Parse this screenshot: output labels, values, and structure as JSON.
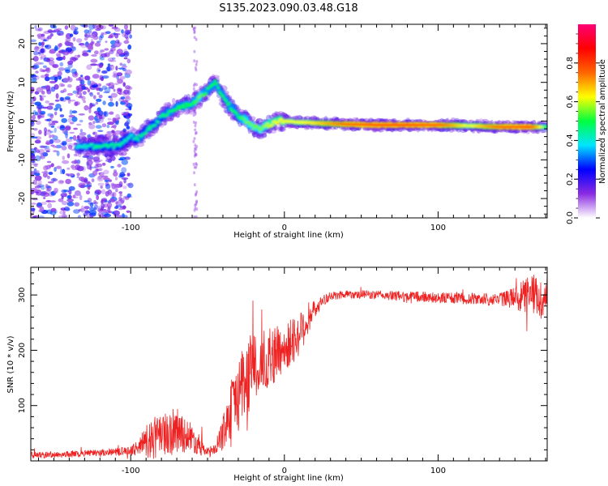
{
  "figure": {
    "title": "S135.2023.090.03.48.G18"
  },
  "colors": {
    "snr_line": "#ee2222",
    "frame": "#000000",
    "track": "#5a00ff",
    "noise": "#8a40ff"
  },
  "chart_data": [
    {
      "type": "heatmap",
      "xlabel": "Height of straight line (km)",
      "ylabel": "Frequency (Hz)",
      "xlim": [
        -165,
        171
      ],
      "ylim": [
        -25,
        25
      ],
      "x_ticks": [
        "-100",
        "0",
        "100"
      ],
      "y_ticks": [
        "-20",
        "-10",
        "0",
        "10",
        "20"
      ],
      "colorbar": {
        "label": "Normalized spectral amplitude",
        "range": [
          0,
          1
        ],
        "ticks": [
          "0.0",
          "0.2",
          "0.4",
          "0.6",
          "0.8"
        ],
        "colormap": [
          "#ffffff",
          "#8a2be2",
          "#0000ff",
          "#00e5ff",
          "#00ff40",
          "#ffff00",
          "#ff6600",
          "#ff0000",
          "#ff0077"
        ]
      },
      "ridge": {
        "x": [
          -130,
          -122,
          -115,
          -108,
          -100,
          -95,
          -90,
          -85,
          -80,
          -75,
          -70,
          -65,
          -60,
          -55,
          -50,
          -45,
          -40,
          -35,
          -30,
          -25,
          -20,
          -15,
          -10,
          -5,
          0,
          10,
          20,
          40,
          60,
          80,
          100,
          120,
          140,
          160,
          171
        ],
        "y": [
          -6.5,
          -6.5,
          -6.5,
          -6.2,
          -4.0,
          -4.5,
          -2.5,
          -1.0,
          1.0,
          2.5,
          3.5,
          4.0,
          4.5,
          6.0,
          8.0,
          10.0,
          6.5,
          3.5,
          1.5,
          0.0,
          -1.5,
          -2.0,
          -1.0,
          0.0,
          0.0,
          -0.3,
          -0.5,
          -0.8,
          -1.0,
          -1.0,
          -1.0,
          -1.2,
          -1.5,
          -1.5,
          -1.5
        ],
        "amplitude": [
          0.4,
          0.45,
          0.45,
          0.45,
          0.4,
          0.45,
          0.45,
          0.45,
          0.45,
          0.5,
          0.5,
          0.5,
          0.5,
          0.55,
          0.5,
          0.5,
          0.5,
          0.5,
          0.5,
          0.55,
          0.55,
          0.55,
          0.6,
          0.62,
          0.62,
          0.62,
          0.65,
          0.78,
          0.82,
          0.82,
          0.8,
          0.6,
          0.78,
          0.82,
          0.5
        ]
      }
    },
    {
      "type": "line",
      "xlabel": "Height of straight line (km)",
      "ylabel": "SNR (10 * v/v)",
      "xlim": [
        -165,
        171
      ],
      "ylim": [
        0,
        350
      ],
      "x_ticks": [
        "-100",
        "0",
        "100"
      ],
      "y_ticks": [
        "100",
        "200",
        "300"
      ],
      "series": [
        {
          "x": [
            -165,
            -140,
            -120,
            -100,
            -95,
            -90,
            -85,
            -80,
            -75,
            -70,
            -65,
            -60,
            -55,
            -50,
            -45,
            -40,
            -35,
            -30,
            -25,
            -20,
            -15,
            -10,
            -5,
            0,
            5,
            10,
            15,
            20,
            25,
            30,
            40,
            60,
            80,
            100,
            120,
            140,
            150,
            160,
            165,
            171
          ],
          "mean": [
            10,
            12,
            15,
            18,
            25,
            35,
            40,
            45,
            50,
            55,
            50,
            40,
            28,
            15,
            20,
            50,
            90,
            120,
            150,
            165,
            175,
            185,
            195,
            200,
            215,
            230,
            255,
            275,
            290,
            297,
            302,
            300,
            297,
            295,
            293,
            292,
            295,
            300,
            295,
            290
          ],
          "amp": [
            6,
            6,
            6,
            8,
            15,
            30,
            40,
            35,
            45,
            40,
            35,
            25,
            18,
            8,
            12,
            30,
            50,
            70,
            70,
            65,
            60,
            55,
            50,
            45,
            45,
            40,
            30,
            15,
            10,
            8,
            8,
            8,
            10,
            10,
            10,
            12,
            20,
            40,
            40,
            30
          ]
        }
      ]
    }
  ]
}
